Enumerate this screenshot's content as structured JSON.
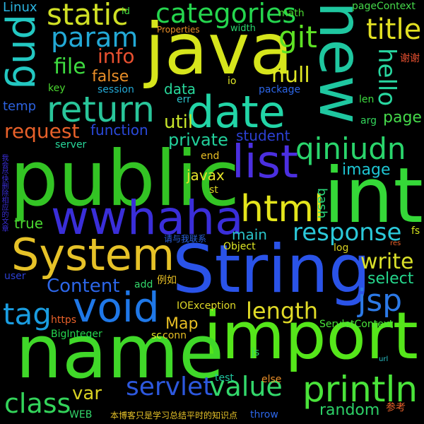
{
  "words": [
    {
      "text": "public",
      "color": "#33c424"
    },
    {
      "text": "String",
      "color": "#2a53e8"
    },
    {
      "text": "import",
      "color": "#55e61a"
    },
    {
      "text": "name",
      "color": "#40d829"
    },
    {
      "text": "java",
      "color": "#d6e51c"
    },
    {
      "text": "new",
      "color": "#1fc7a0"
    },
    {
      "text": "int",
      "color": "#35d838"
    },
    {
      "text": "System",
      "color": "#e6c228"
    },
    {
      "text": "wwhaha",
      "color": "#3a2ed9"
    },
    {
      "text": "void",
      "color": "#1f78e8"
    },
    {
      "text": "date",
      "color": "#22d5a7"
    },
    {
      "text": "png",
      "color": "#23c8c2"
    },
    {
      "text": "list",
      "color": "#4b2fe0"
    },
    {
      "text": "return",
      "color": "#29c59a"
    },
    {
      "text": "html",
      "color": "#e4e51c"
    },
    {
      "text": "println",
      "color": "#4ae33a"
    },
    {
      "text": "static",
      "color": "#d0e025"
    },
    {
      "text": "param",
      "color": "#23a9d6"
    },
    {
      "text": "categories",
      "color": "#25d64e"
    },
    {
      "text": "git",
      "color": "#5ee224"
    },
    {
      "text": "title",
      "color": "#e1df22"
    },
    {
      "text": "hello",
      "color": "#28d7a0"
    },
    {
      "text": "qiniudn",
      "color": "#2ad56c"
    },
    {
      "text": "response",
      "color": "#2bc8d9"
    },
    {
      "text": "jsp",
      "color": "#2c79e6"
    },
    {
      "text": "servlet",
      "color": "#2d58de"
    },
    {
      "text": "value",
      "color": "#33d86b"
    },
    {
      "text": "tag",
      "color": "#1a9de0"
    },
    {
      "text": "class",
      "color": "#33d45a"
    },
    {
      "text": "Content",
      "color": "#2c66e8"
    },
    {
      "text": "length",
      "color": "#e0da27"
    },
    {
      "text": "write",
      "color": "#dae02a"
    },
    {
      "text": "select",
      "color": "#25d68c"
    },
    {
      "text": "random",
      "color": "#2dd067"
    },
    {
      "text": "var",
      "color": "#d7d022"
    },
    {
      "text": "request",
      "color": "#e8612a"
    },
    {
      "text": "info",
      "color": "#e85030"
    },
    {
      "text": "file",
      "color": "#3edb40"
    },
    {
      "text": "null",
      "color": "#e0e825"
    },
    {
      "text": "util",
      "color": "#c7e42a"
    },
    {
      "text": "private",
      "color": "#22cf9a"
    },
    {
      "text": "function",
      "color": "#2a49da"
    },
    {
      "text": "image",
      "color": "#1ec6d3"
    },
    {
      "text": "page",
      "color": "#45d84a"
    },
    {
      "text": "Map",
      "color": "#e8bf24"
    },
    {
      "text": "main",
      "color": "#2ac3c9"
    },
    {
      "text": "bash",
      "color": "#2ad87a"
    },
    {
      "text": "javax",
      "color": "#e7e42a"
    },
    {
      "text": "false",
      "color": "#e88e28"
    },
    {
      "text": "data",
      "color": "#28d89b"
    },
    {
      "text": "student",
      "color": "#2c40d4"
    },
    {
      "text": "Linux",
      "color": "#2cb4e0"
    },
    {
      "text": "true",
      "color": "#4ad830"
    },
    {
      "text": "temp",
      "color": "#2c62e0"
    },
    {
      "text": "我会尽快删除相应的文章",
      "color": "#3a2ed9"
    },
    {
      "text": "请与我联系",
      "color": "#2c62e0"
    },
    {
      "text": "本博客只是学习总结平时的知识点",
      "color": "#e6c228"
    },
    {
      "text": "例如",
      "color": "#e8bf24"
    },
    {
      "text": "谢谢",
      "color": "#e85030"
    },
    {
      "text": "参考",
      "color": "#e8612a"
    },
    {
      "text": "IOException",
      "color": "#e0da27"
    },
    {
      "text": "BigInteger",
      "color": "#25d64e"
    },
    {
      "text": "ServletContext",
      "color": "#4ae33a"
    },
    {
      "text": "Object",
      "color": "#e0e825"
    },
    {
      "text": "pageContext",
      "color": "#45d84a"
    },
    {
      "text": "Properties",
      "color": "#e88e28"
    },
    {
      "text": "session",
      "color": "#23a9d6"
    },
    {
      "text": "package",
      "color": "#2c66e8"
    },
    {
      "text": "https",
      "color": "#e8612a"
    },
    {
      "text": "server",
      "color": "#28d89b"
    },
    {
      "text": "WEB",
      "color": "#33d86b"
    },
    {
      "text": "test",
      "color": "#1fc7a0"
    },
    {
      "text": "else",
      "color": "#e88e28"
    },
    {
      "text": "throw",
      "color": "#2c66e8"
    },
    {
      "text": "math",
      "color": "#4ad830"
    },
    {
      "text": "width",
      "color": "#2ad56c"
    },
    {
      "text": "key",
      "color": "#4ad830"
    },
    {
      "text": "err",
      "color": "#2ac3c9"
    },
    {
      "text": "len",
      "color": "#3edb40"
    },
    {
      "text": "arg",
      "color": "#33d45a"
    },
    {
      "text": "end",
      "color": "#e8bf24"
    },
    {
      "text": "st",
      "color": "#d7d022"
    },
    {
      "text": "fs",
      "color": "#d6e51c"
    },
    {
      "text": "res",
      "color": "#e8612a"
    },
    {
      "text": "log",
      "color": "#d7d022"
    },
    {
      "text": "user",
      "color": "#2c40d4"
    },
    {
      "text": "add",
      "color": "#33d86b"
    },
    {
      "text": "sc",
      "color": "#e0e825"
    },
    {
      "text": "conn",
      "color": "#e8bf24"
    },
    {
      "text": "js",
      "color": "#2ad56c"
    },
    {
      "text": "url",
      "color": "#2ac3c9"
    },
    {
      "text": "id",
      "color": "#3edb40"
    },
    {
      "text": "io",
      "color": "#e0e825"
    }
  ]
}
